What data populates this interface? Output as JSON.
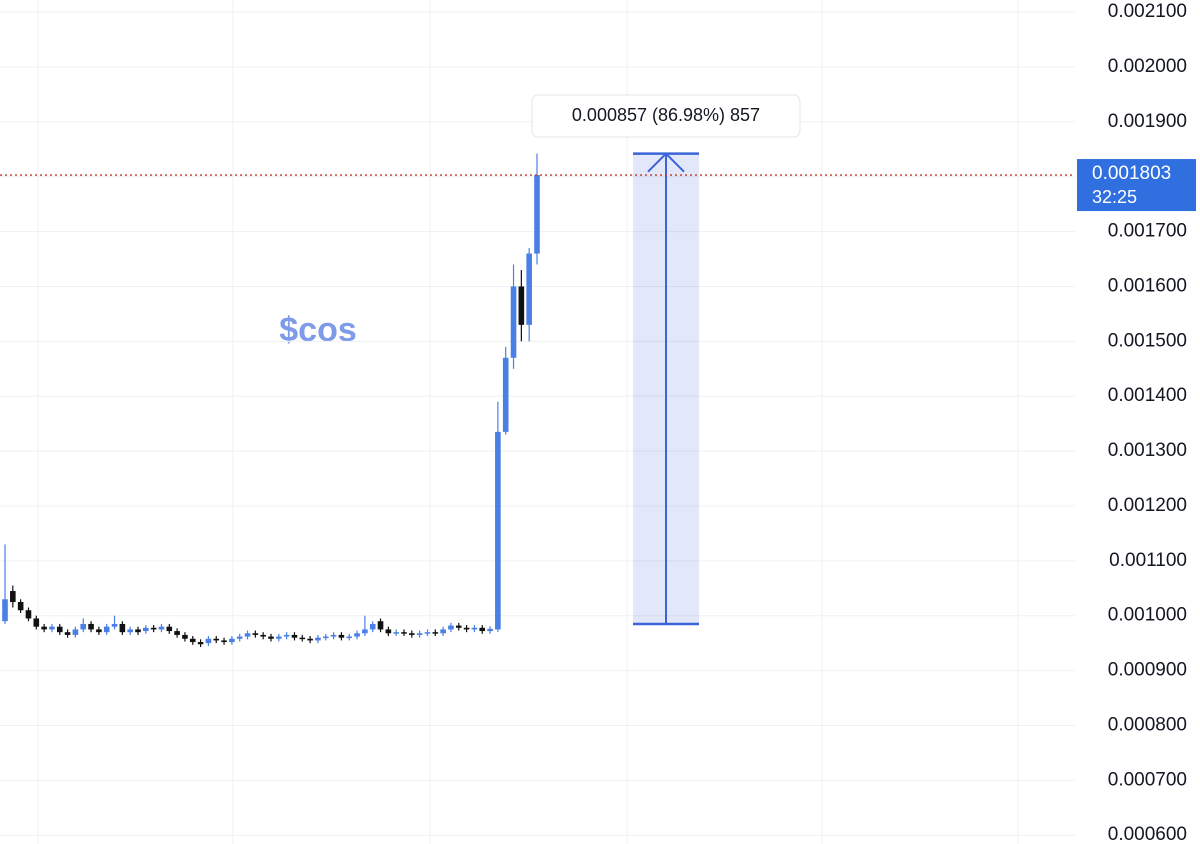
{
  "chart_data": {
    "type": "candlestick",
    "title": "$cos",
    "ylim": [
      0.000584,
      0.002122
    ],
    "yticks": [
      {
        "value": 0.0006,
        "label": "0.000600"
      },
      {
        "value": 0.0007,
        "label": "0.000700"
      },
      {
        "value": 0.0008,
        "label": "0.000800"
      },
      {
        "value": 0.0009,
        "label": "0.000900"
      },
      {
        "value": 0.001,
        "label": "0.001000"
      },
      {
        "value": 0.0011,
        "label": "0.001100"
      },
      {
        "value": 0.0012,
        "label": "0.001200"
      },
      {
        "value": 0.0013,
        "label": "0.001300"
      },
      {
        "value": 0.0014,
        "label": "0.001400"
      },
      {
        "value": 0.0015,
        "label": "0.001500"
      },
      {
        "value": 0.0016,
        "label": "0.001600"
      },
      {
        "value": 0.0017,
        "label": "0.001700"
      },
      {
        "value": 0.0018,
        "label": "0.001800"
      },
      {
        "value": 0.0019,
        "label": "0.001900"
      },
      {
        "value": 0.002,
        "label": "0.002000"
      },
      {
        "value": 0.0021,
        "label": "0.002100"
      }
    ],
    "grid": true,
    "up_color": "#4a7fe6",
    "down_color": "#111111",
    "open": [
      0.00099,
      0.001045,
      0.001025,
      0.00101,
      0.000995,
      0.00098,
      0.000975,
      0.00098,
      0.00097,
      0.000965,
      0.000975,
      0.000985,
      0.000975,
      0.00097,
      0.00098,
      0.000985,
      0.00097,
      0.000975,
      0.000972,
      0.000978,
      0.000975,
      0.00098,
      0.000972,
      0.000965,
      0.000958,
      0.000952,
      0.00095,
      0.000958,
      0.000955,
      0.000952,
      0.000958,
      0.000962,
      0.000968,
      0.000965,
      0.000962,
      0.000958,
      0.000962,
      0.000965,
      0.00096,
      0.000958,
      0.000955,
      0.00096,
      0.000962,
      0.000965,
      0.00096,
      0.000962,
      0.000968,
      0.000975,
      0.00099,
      0.000975,
      0.000968,
      0.00097,
      0.000968,
      0.000965,
      0.000968,
      0.00097,
      0.000968,
      0.000975,
      0.000982,
      0.000978,
      0.000975,
      0.000978,
      0.000972,
      0.000975,
      0.001335,
      0.00147,
      0.0016,
      0.00153,
      0.00166
    ],
    "high": [
      0.00113,
      0.001055,
      0.00103,
      0.001015,
      0.001,
      0.000985,
      0.000985,
      0.000985,
      0.000975,
      0.00098,
      0.000995,
      0.00099,
      0.00098,
      0.000985,
      0.001,
      0.00099,
      0.00098,
      0.00098,
      0.000983,
      0.000983,
      0.000985,
      0.000985,
      0.000977,
      0.00097,
      0.000963,
      0.000957,
      0.000963,
      0.000963,
      0.00096,
      0.000963,
      0.000967,
      0.000973,
      0.000973,
      0.00097,
      0.000967,
      0.000967,
      0.00097,
      0.00097,
      0.000965,
      0.000963,
      0.000965,
      0.000967,
      0.00097,
      0.00097,
      0.000967,
      0.000973,
      0.001,
      0.00099,
      0.000995,
      0.00098,
      0.000975,
      0.000975,
      0.000973,
      0.000973,
      0.000975,
      0.000975,
      0.00098,
      0.000987,
      0.000987,
      0.000983,
      0.000983,
      0.000983,
      0.000981,
      0.00139,
      0.00149,
      0.00164,
      0.00163,
      0.00167,
      0.001842
    ],
    "low": [
      0.000985,
      0.001015,
      0.001005,
      0.00099,
      0.000975,
      0.00097,
      0.00097,
      0.000965,
      0.00096,
      0.00096,
      0.00097,
      0.00097,
      0.000965,
      0.000965,
      0.000975,
      0.000965,
      0.000965,
      0.000965,
      0.000967,
      0.00097,
      0.00097,
      0.000967,
      0.00096,
      0.000953,
      0.000947,
      0.000943,
      0.000945,
      0.00095,
      0.000947,
      0.000947,
      0.000953,
      0.000957,
      0.00096,
      0.000957,
      0.000953,
      0.000953,
      0.000957,
      0.000955,
      0.000953,
      0.00095,
      0.00095,
      0.000955,
      0.000957,
      0.000955,
      0.000955,
      0.000957,
      0.000963,
      0.00097,
      0.00097,
      0.000963,
      0.000963,
      0.000963,
      0.00096,
      0.00096,
      0.000963,
      0.000963,
      0.000963,
      0.00097,
      0.000973,
      0.00097,
      0.00097,
      0.000967,
      0.000967,
      0.00097,
      0.00133,
      0.00145,
      0.0015,
      0.0015,
      0.00164
    ],
    "close": [
      0.00103,
      0.001025,
      0.00101,
      0.000995,
      0.00098,
      0.000975,
      0.00098,
      0.00097,
      0.000965,
      0.000975,
      0.000985,
      0.000975,
      0.00097,
      0.00098,
      0.000985,
      0.00097,
      0.000975,
      0.00097,
      0.000978,
      0.000975,
      0.00098,
      0.000972,
      0.000965,
      0.000958,
      0.000952,
      0.000948,
      0.000958,
      0.000955,
      0.000952,
      0.000958,
      0.000962,
      0.000968,
      0.000965,
      0.000962,
      0.000958,
      0.000962,
      0.000965,
      0.00096,
      0.000958,
      0.000955,
      0.00096,
      0.000962,
      0.000965,
      0.00096,
      0.000962,
      0.000968,
      0.000975,
      0.000985,
      0.000975,
      0.000968,
      0.00097,
      0.000968,
      0.000965,
      0.000968,
      0.00097,
      0.000968,
      0.000975,
      0.000982,
      0.000978,
      0.000975,
      0.000978,
      0.000972,
      0.000976,
      0.001335,
      0.00147,
      0.0016,
      0.00153,
      0.00166,
      0.001803
    ],
    "last_price": {
      "value": 0.001803,
      "label": "0.001803",
      "countdown": "32:25",
      "color": "#2f6fe0",
      "line_color": "#c0392b"
    },
    "measure": {
      "from": 0.000985,
      "to": 0.001842,
      "label": "0.000857 (86.98%) 857",
      "color": "#3a64d8"
    }
  }
}
